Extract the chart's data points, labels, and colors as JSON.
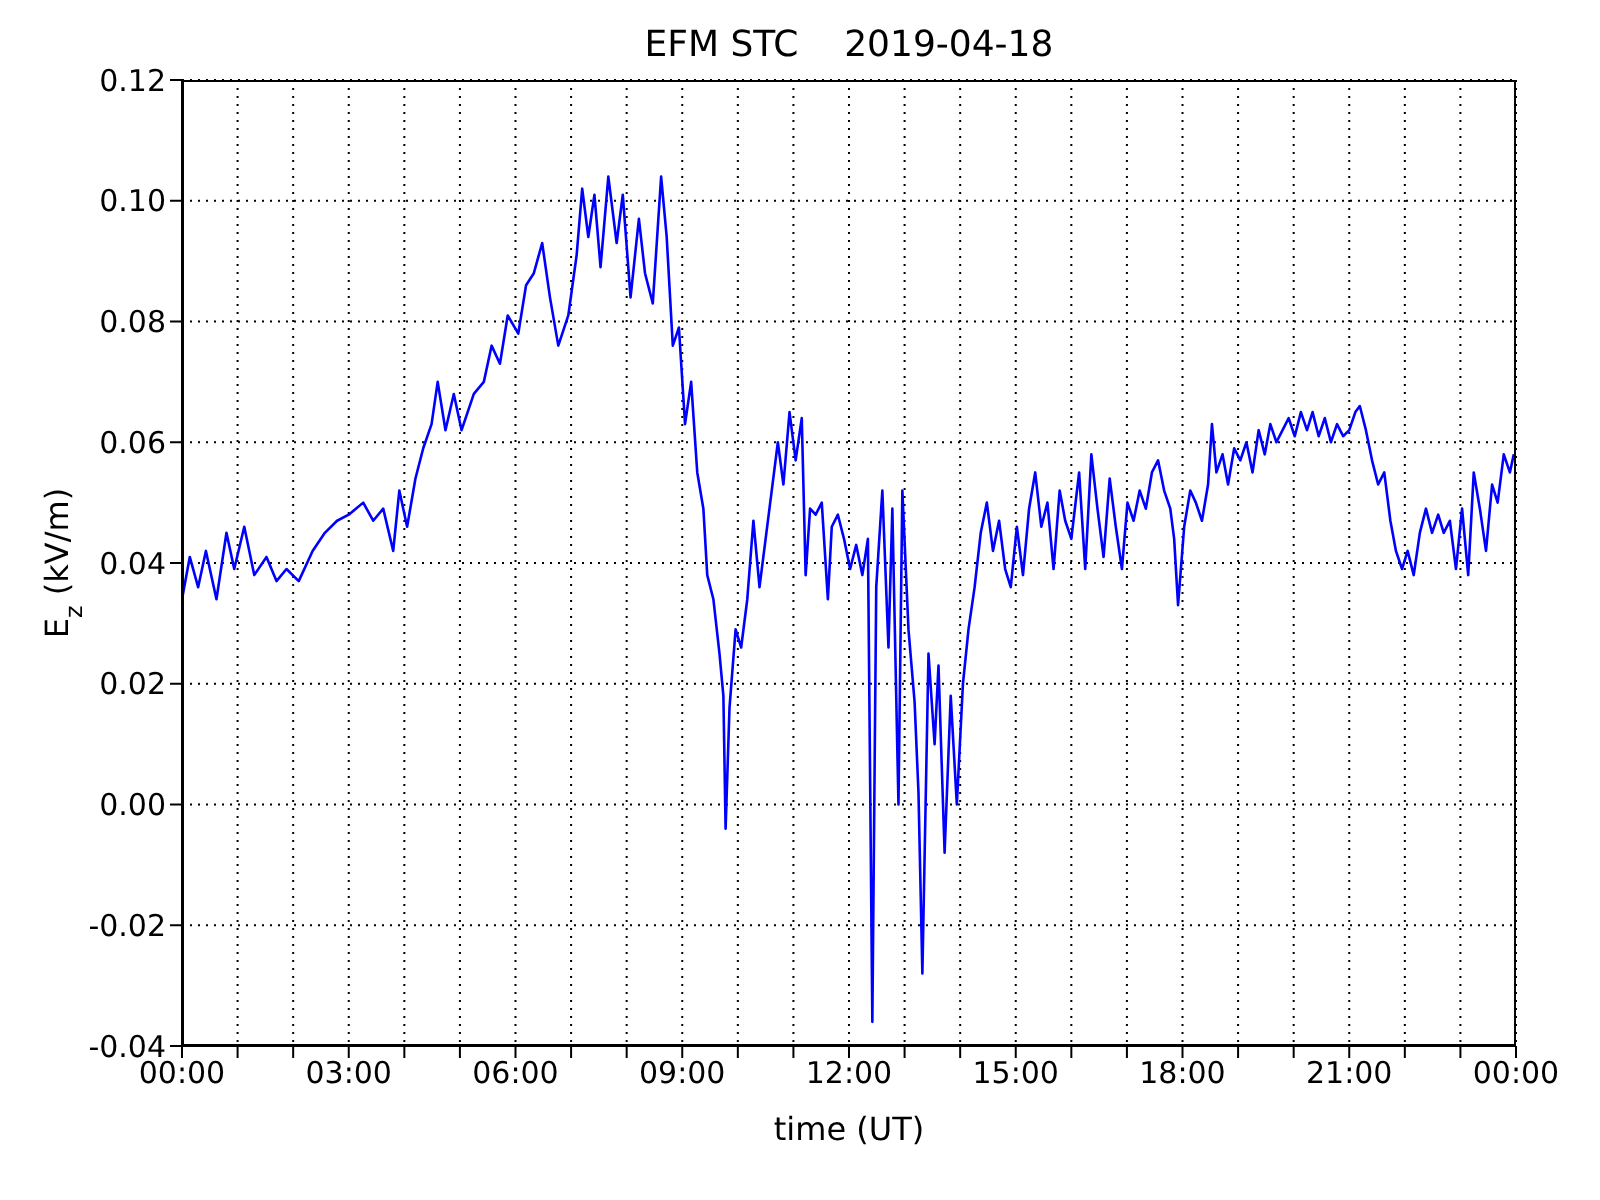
{
  "chart_data": {
    "type": "line",
    "title": "EFM STC    2019-04-18",
    "xlabel": "time (UT)",
    "ylabel": "E$_{z}$ (kV/m)",
    "grid": true,
    "legend": false,
    "marker": "none",
    "line_style": "solid",
    "xlim": [
      0,
      24
    ],
    "ylim": [
      -0.04,
      0.12
    ],
    "xticks": [
      {
        "value": 0,
        "label": "00:00"
      },
      {
        "value": 1,
        "label": null
      },
      {
        "value": 2,
        "label": null
      },
      {
        "value": 3,
        "label": "03:00"
      },
      {
        "value": 4,
        "label": null
      },
      {
        "value": 5,
        "label": null
      },
      {
        "value": 6,
        "label": "06:00"
      },
      {
        "value": 7,
        "label": null
      },
      {
        "value": 8,
        "label": null
      },
      {
        "value": 9,
        "label": "09:00"
      },
      {
        "value": 10,
        "label": null
      },
      {
        "value": 11,
        "label": null
      },
      {
        "value": 12,
        "label": "12:00"
      },
      {
        "value": 13,
        "label": null
      },
      {
        "value": 14,
        "label": null
      },
      {
        "value": 15,
        "label": "15:00"
      },
      {
        "value": 16,
        "label": null
      },
      {
        "value": 17,
        "label": null
      },
      {
        "value": 18,
        "label": "18:00"
      },
      {
        "value": 19,
        "label": null
      },
      {
        "value": 20,
        "label": null
      },
      {
        "value": 21,
        "label": "21:00"
      },
      {
        "value": 22,
        "label": null
      },
      {
        "value": 23,
        "label": null
      },
      {
        "value": 24,
        "label": "00:00"
      }
    ],
    "yticks": [
      {
        "value": -0.04,
        "label": "-0.04"
      },
      {
        "value": -0.02,
        "label": "-0.02"
      },
      {
        "value": 0,
        "label": "0.00"
      },
      {
        "value": 0.02,
        "label": "0.02"
      },
      {
        "value": 0.04,
        "label": "0.04"
      },
      {
        "value": 0.06,
        "label": "0.06"
      },
      {
        "value": 0.08,
        "label": "0.08"
      },
      {
        "value": 0.1,
        "label": "0.10"
      },
      {
        "value": 0.12,
        "label": "0.12"
      }
    ],
    "x": [
      0,
      0.14,
      0.29,
      0.43,
      0.62,
      0.8,
      0.94,
      1.12,
      1.3,
      1.52,
      1.7,
      1.88,
      2.1,
      2.35,
      2.57,
      2.79,
      3,
      3.26,
      3.44,
      3.62,
      3.8,
      3.91,
      4.05,
      4.2,
      4.34,
      4.49,
      4.6,
      4.74,
      4.89,
      5.03,
      5.25,
      5.43,
      5.57,
      5.72,
      5.86,
      6.05,
      6.19,
      6.33,
      6.48,
      6.62,
      6.77,
      6.95,
      7.1,
      7.2,
      7.31,
      7.42,
      7.53,
      7.67,
      7.82,
      7.93,
      8.07,
      8.22,
      8.33,
      8.47,
      8.62,
      8.72,
      8.83,
      8.94,
      9.05,
      9.16,
      9.27,
      9.38,
      9.45,
      9.56,
      9.67,
      9.74,
      9.78,
      9.85,
      9.96,
      10.06,
      10.17,
      10.28,
      10.39,
      10.5,
      10.61,
      10.72,
      10.82,
      10.93,
      11.04,
      11.15,
      11.22,
      11.3,
      11.4,
      11.51,
      11.62,
      11.69,
      11.8,
      11.91,
      12.02,
      12.13,
      12.24,
      12.34,
      12.42,
      12.49,
      12.6,
      12.71,
      12.78,
      12.89,
      12.96,
      13.07,
      13.18,
      13.25,
      13.32,
      13.43,
      13.54,
      13.61,
      13.72,
      13.83,
      13.94,
      14.05,
      14.15,
      14.26,
      14.37,
      14.48,
      14.59,
      14.7,
      14.81,
      14.91,
      15.02,
      15.13,
      15.24,
      15.35,
      15.46,
      15.57,
      15.68,
      15.79,
      15.89,
      16,
      16.14,
      16.25,
      16.36,
      16.47,
      16.58,
      16.69,
      16.8,
      16.91,
      17.01,
      17.12,
      17.23,
      17.34,
      17.45,
      17.56,
      17.67,
      17.78,
      17.85,
      17.92,
      18.03,
      18.14,
      18.24,
      18.35,
      18.46,
      18.53,
      18.61,
      18.72,
      18.82,
      18.93,
      19.04,
      19.15,
      19.26,
      19.37,
      19.48,
      19.58,
      19.69,
      19.8,
      19.91,
      20.02,
      20.13,
      20.24,
      20.34,
      20.45,
      20.56,
      20.67,
      20.78,
      20.89,
      21,
      21.11,
      21.19,
      21.3,
      21.41,
      21.52,
      21.63,
      21.74,
      21.84,
      21.95,
      22.05,
      22.16,
      22.27,
      22.38,
      22.49,
      22.6,
      22.7,
      22.81,
      22.92,
      23.03,
      23.14,
      23.24,
      23.35,
      23.46,
      23.57,
      23.67,
      23.78,
      23.89,
      23.96
    ],
    "series": [
      {
        "color": "#0000ff",
        "values": [
          0.034,
          0.041,
          0.036,
          0.042,
          0.034,
          0.045,
          0.039,
          0.046,
          0.038,
          0.041,
          0.037,
          0.039,
          0.037,
          0.042,
          0.045,
          0.047,
          0.048,
          0.05,
          0.047,
          0.049,
          0.042,
          0.052,
          0.046,
          0.054,
          0.059,
          0.063,
          0.07,
          0.062,
          0.068,
          0.062,
          0.068,
          0.07,
          0.076,
          0.073,
          0.081,
          0.078,
          0.086,
          0.088,
          0.093,
          0.084,
          0.076,
          0.081,
          0.091,
          0.102,
          0.094,
          0.101,
          0.089,
          0.104,
          0.093,
          0.101,
          0.084,
          0.097,
          0.088,
          0.083,
          0.104,
          0.094,
          0.076,
          0.079,
          0.063,
          0.07,
          0.055,
          0.049,
          0.038,
          0.034,
          0.025,
          0.018,
          -0.004,
          0.016,
          0.029,
          0.026,
          0.034,
          0.047,
          0.036,
          0.044,
          0.052,
          0.06,
          0.053,
          0.065,
          0.057,
          0.064,
          0.038,
          0.049,
          0.048,
          0.05,
          0.034,
          0.046,
          0.048,
          0.044,
          0.039,
          0.043,
          0.038,
          0.044,
          -0.036,
          0.036,
          0.052,
          0.026,
          0.049,
          0,
          0.052,
          0.029,
          0.017,
          0.002,
          -0.028,
          0.025,
          0.01,
          0.023,
          -0.008,
          0.018,
          0,
          0.02,
          0.029,
          0.036,
          0.045,
          0.05,
          0.042,
          0.047,
          0.039,
          0.036,
          0.046,
          0.038,
          0.049,
          0.055,
          0.046,
          0.05,
          0.039,
          0.052,
          0.047,
          0.044,
          0.055,
          0.039,
          0.058,
          0.049,
          0.041,
          0.054,
          0.046,
          0.039,
          0.05,
          0.047,
          0.052,
          0.049,
          0.055,
          0.057,
          0.052,
          0.049,
          0.044,
          0.033,
          0.046,
          0.052,
          0.05,
          0.047,
          0.053,
          0.063,
          0.055,
          0.058,
          0.053,
          0.059,
          0.057,
          0.06,
          0.055,
          0.062,
          0.058,
          0.063,
          0.06,
          0.062,
          0.064,
          0.061,
          0.065,
          0.062,
          0.065,
          0.061,
          0.064,
          0.06,
          0.063,
          0.061,
          0.062,
          0.065,
          0.066,
          0.062,
          0.057,
          0.053,
          0.055,
          0.047,
          0.042,
          0.039,
          0.042,
          0.038,
          0.045,
          0.049,
          0.045,
          0.048,
          0.045,
          0.047,
          0.039,
          0.049,
          0.038,
          0.055,
          0.049,
          0.042,
          0.053,
          0.05,
          0.058,
          0.055,
          0.058
        ]
      }
    ]
  }
}
